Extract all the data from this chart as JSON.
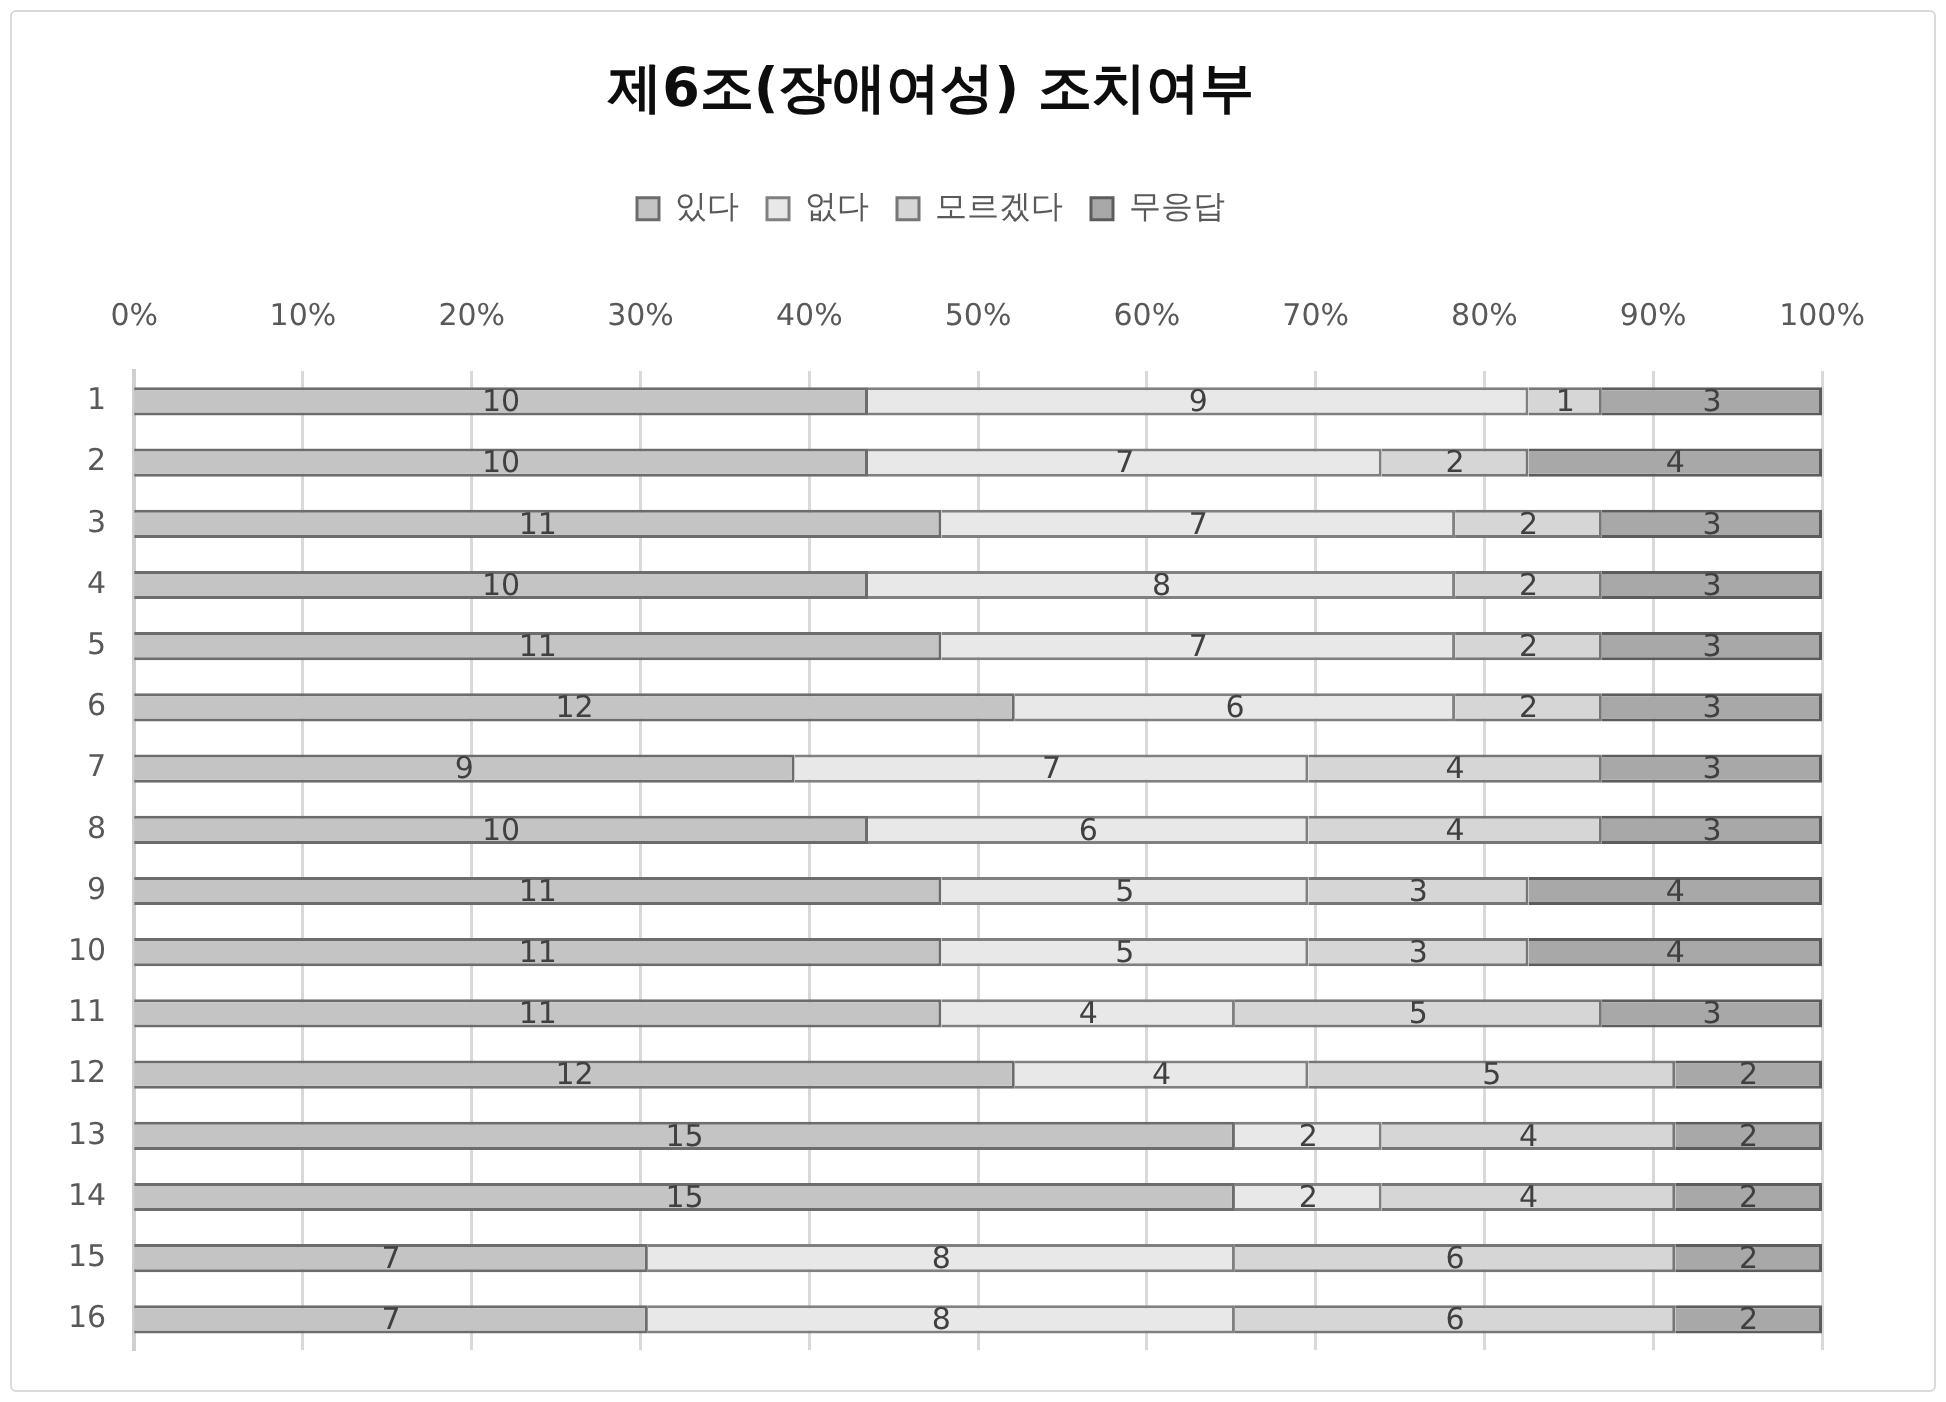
{
  "chart_data": {
    "type": "bar",
    "title": "제6조(장애여성) 조치여부",
    "orientation": "horizontal",
    "stacked": true,
    "categories": [
      "1",
      "2",
      "3",
      "4",
      "5",
      "6",
      "7",
      "8",
      "9",
      "10",
      "11",
      "12",
      "13",
      "14",
      "15",
      "16"
    ],
    "series": [
      {
        "name": "있다",
        "color": "#c4c4c4",
        "values": [
          10,
          10,
          11,
          10,
          11,
          12,
          9,
          10,
          11,
          11,
          11,
          12,
          15,
          15,
          7,
          7
        ]
      },
      {
        "name": "없다",
        "color": "#e8e8e8",
        "values": [
          9,
          7,
          7,
          8,
          7,
          6,
          7,
          6,
          5,
          5,
          4,
          4,
          2,
          2,
          8,
          8
        ]
      },
      {
        "name": "모르겠다",
        "color": "#d6d6d6",
        "values": [
          1,
          2,
          2,
          2,
          2,
          2,
          4,
          4,
          3,
          3,
          5,
          5,
          4,
          4,
          6,
          6
        ]
      },
      {
        "name": "무응답",
        "color": "#a8a8a8",
        "values": [
          3,
          4,
          3,
          3,
          3,
          3,
          3,
          3,
          4,
          4,
          3,
          2,
          2,
          2,
          2,
          2
        ]
      }
    ],
    "xlim": [
      0,
      23
    ],
    "x2lim": [
      0,
      100
    ],
    "x2ticks": [
      {
        "value": 0,
        "label": "0%"
      },
      {
        "value": 10,
        "label": "10%"
      },
      {
        "value": 20,
        "label": "20%"
      },
      {
        "value": 30,
        "label": "30%"
      },
      {
        "value": 40,
        "label": "40%"
      },
      {
        "value": 50,
        "label": "50%"
      },
      {
        "value": 60,
        "label": "60%"
      },
      {
        "value": 70,
        "label": "70%"
      },
      {
        "value": 80,
        "label": "80%"
      },
      {
        "value": 90,
        "label": "90%"
      },
      {
        "value": 100,
        "label": "100%"
      }
    ],
    "grid": "x",
    "legend": "top",
    "data_labels": true
  }
}
